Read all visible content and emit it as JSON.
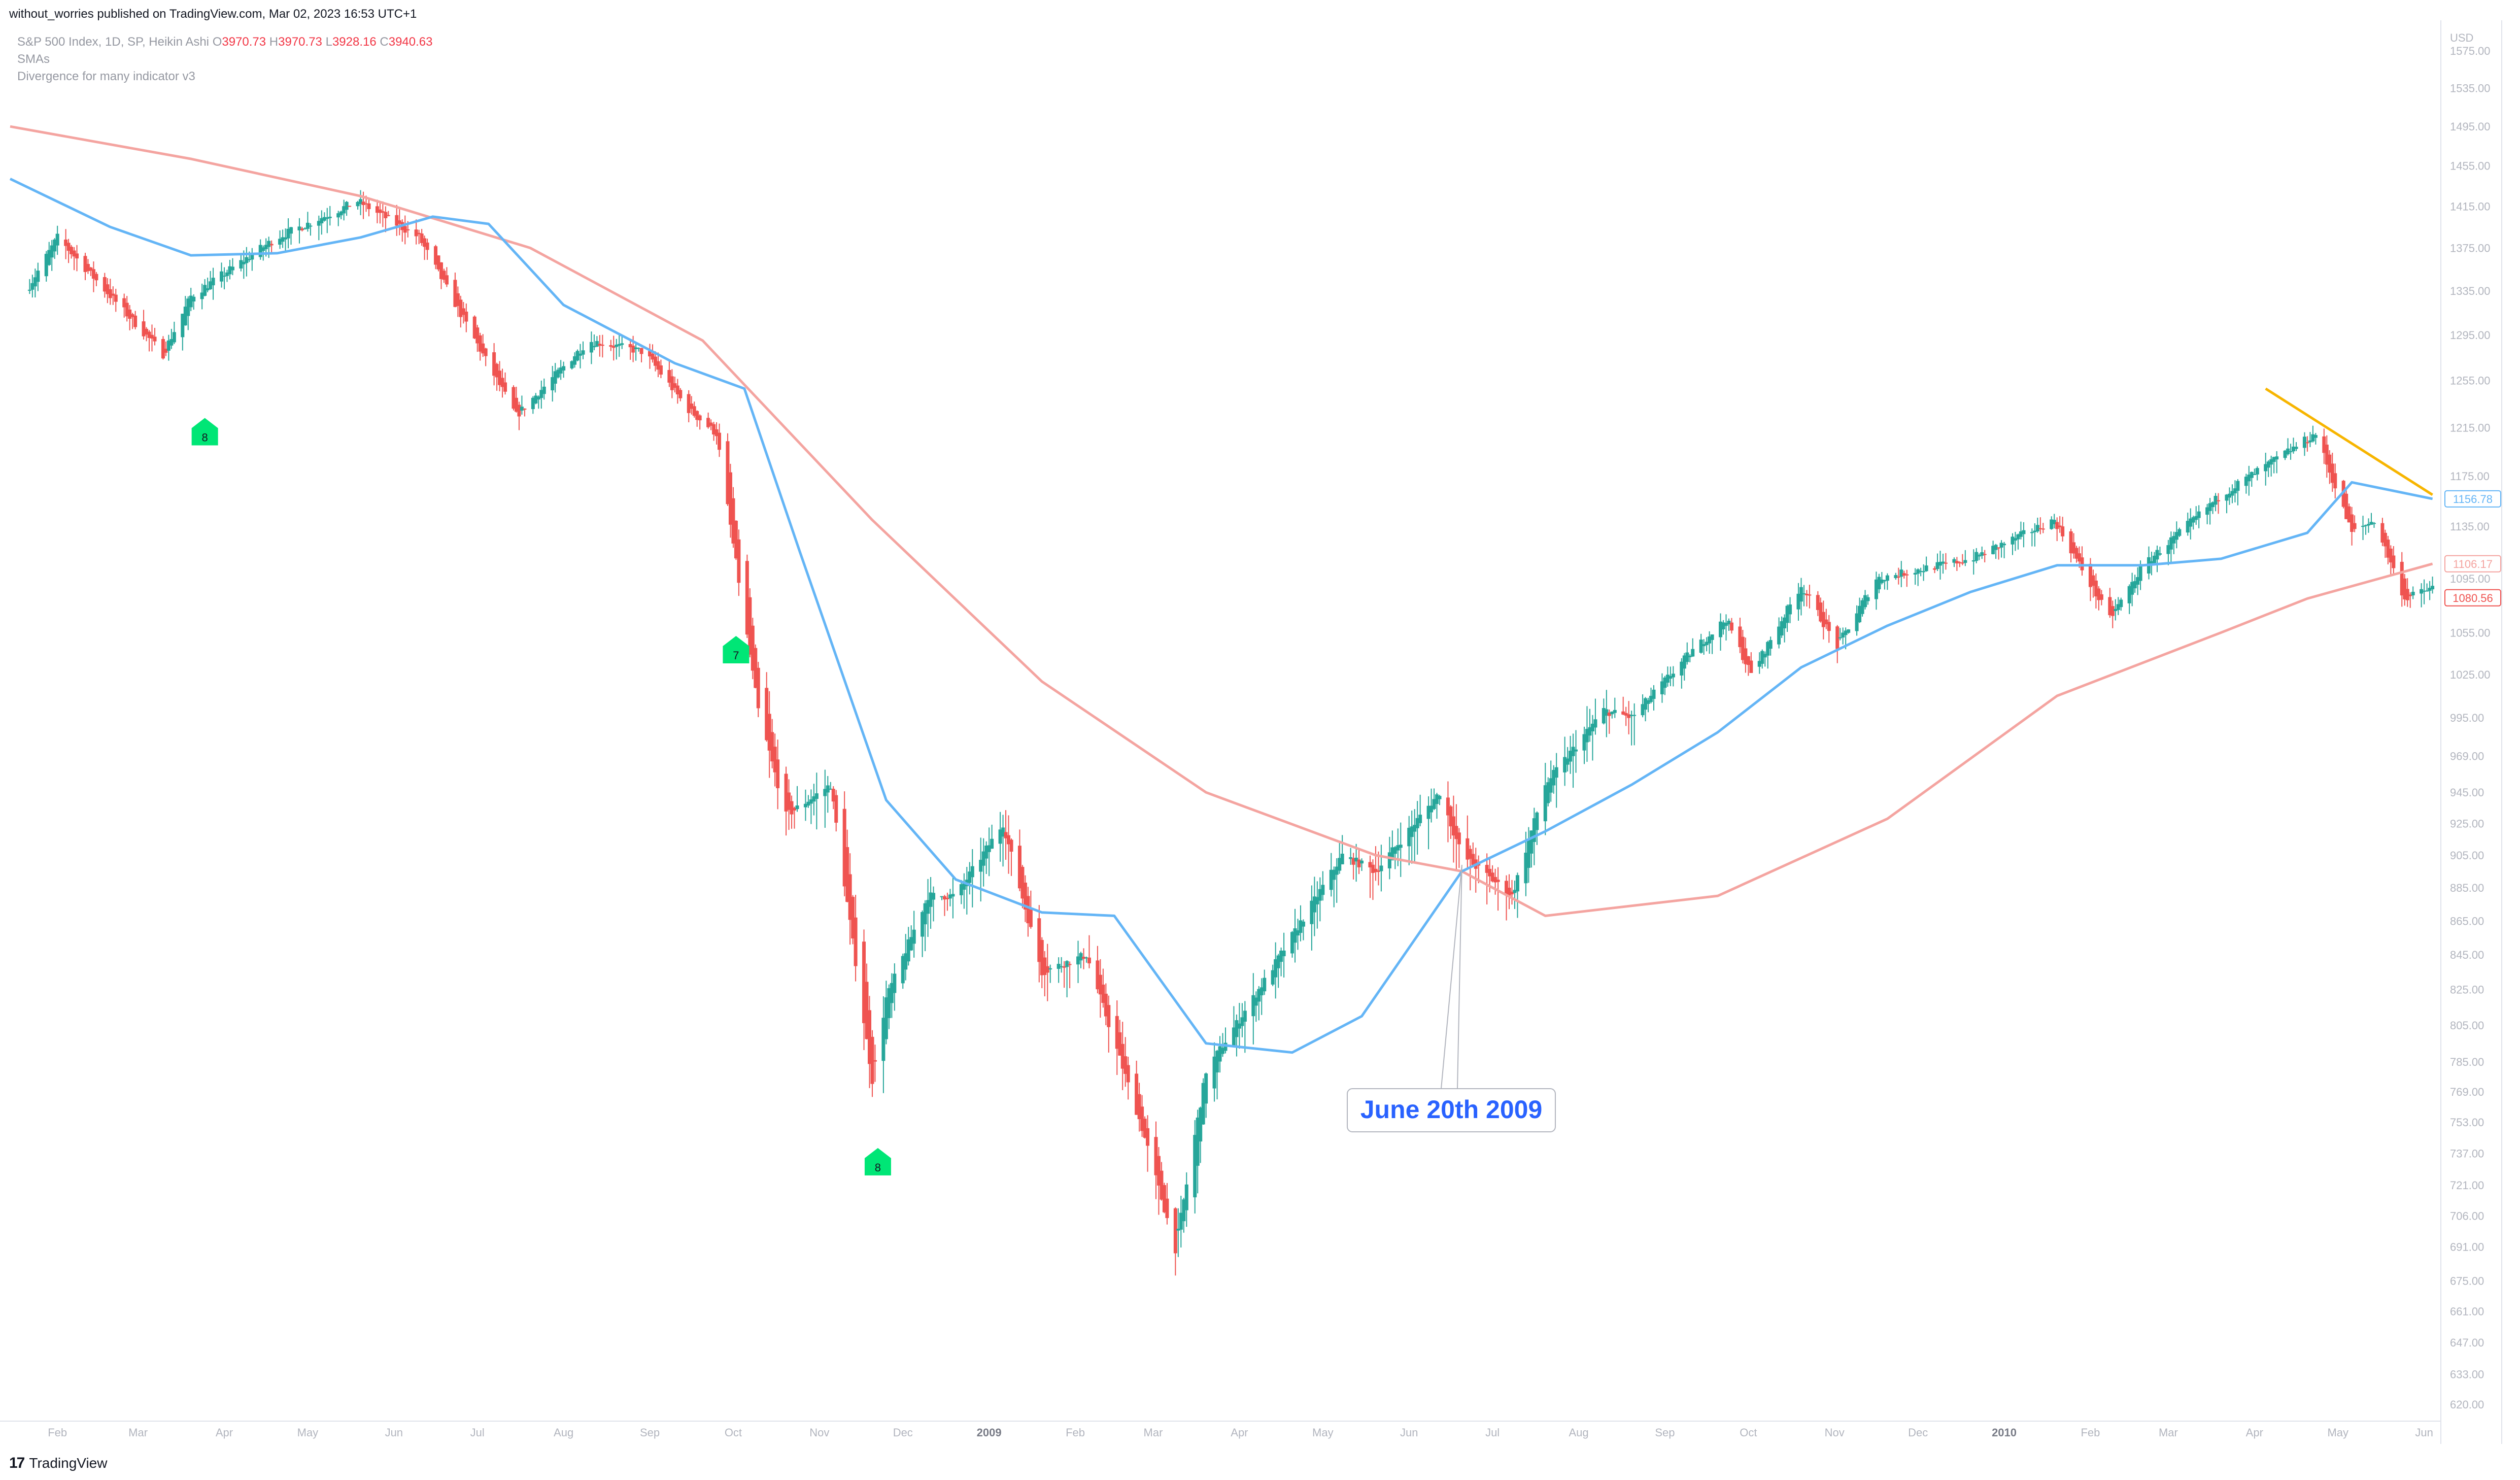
{
  "header": {
    "publisher_line": "without_worries published on TradingView.com, Mar 02, 2023 16:53 UTC+1"
  },
  "legend": {
    "symbol": "S&P 500 Index, 1D, SP, Heikin Ashi",
    "o_label": "O",
    "o_value": "3970.73",
    "h_label": "H",
    "h_value": "3970.73",
    "l_label": "L",
    "l_value": "3928.16",
    "c_label": "C",
    "c_value": "3940.63",
    "indicator1": "SMAs",
    "indicator2": "Divergence for many indicator v3"
  },
  "footer": {
    "brand": "TradingView",
    "logo_glyph": "17"
  },
  "colors": {
    "up": "#26a69a",
    "down": "#ef5350",
    "sma_fast": "#64b5f6",
    "sma_slow": "#f4a4a0",
    "trendline": "#f7b500",
    "signal": "#00e676",
    "annotation_text": "#2962ff"
  },
  "chart_data": {
    "type": "candlestick",
    "price_axis_currency": "USD",
    "y_scale": "log",
    "ylim": [
      615,
      1600
    ],
    "y_ticks": [
      "1575.00",
      "1535.00",
      "1495.00",
      "1455.00",
      "1415.00",
      "1375.00",
      "1335.00",
      "1295.00",
      "1255.00",
      "1215.00",
      "1175.00",
      "1135.00",
      "1095.00",
      "1055.00",
      "1025.00",
      "995.00",
      "969.00",
      "945.00",
      "925.00",
      "905.00",
      "885.00",
      "865.00",
      "845.00",
      "825.00",
      "805.00",
      "785.00",
      "769.00",
      "753.00",
      "737.00",
      "721.00",
      "706.00",
      "691.00",
      "675.00",
      "661.00",
      "647.00",
      "633.00",
      "620.00"
    ],
    "x_ticks": [
      {
        "label": "Feb",
        "date": "2008-02-01"
      },
      {
        "label": "Mar",
        "date": "2008-03-01"
      },
      {
        "label": "Apr",
        "date": "2008-04-01"
      },
      {
        "label": "May",
        "date": "2008-05-01"
      },
      {
        "label": "Jun",
        "date": "2008-06-01"
      },
      {
        "label": "Jul",
        "date": "2008-07-01"
      },
      {
        "label": "Aug",
        "date": "2008-08-01"
      },
      {
        "label": "Sep",
        "date": "2008-09-01"
      },
      {
        "label": "Oct",
        "date": "2008-10-01"
      },
      {
        "label": "Nov",
        "date": "2008-11-01"
      },
      {
        "label": "Dec",
        "date": "2008-12-01"
      },
      {
        "label": "2009",
        "date": "2009-01-01",
        "bold": true
      },
      {
        "label": "Feb",
        "date": "2009-02-01"
      },
      {
        "label": "Mar",
        "date": "2009-03-01"
      },
      {
        "label": "Apr",
        "date": "2009-04-01"
      },
      {
        "label": "May",
        "date": "2009-05-01"
      },
      {
        "label": "Jun",
        "date": "2009-06-01"
      },
      {
        "label": "Jul",
        "date": "2009-07-01"
      },
      {
        "label": "Aug",
        "date": "2009-08-01"
      },
      {
        "label": "Sep",
        "date": "2009-09-01"
      },
      {
        "label": "Oct",
        "date": "2009-10-01"
      },
      {
        "label": "Nov",
        "date": "2009-11-01"
      },
      {
        "label": "Dec",
        "date": "2009-12-01"
      },
      {
        "label": "2010",
        "date": "2010-01-01",
        "bold": true
      },
      {
        "label": "Feb",
        "date": "2010-02-01"
      },
      {
        "label": "Mar",
        "date": "2010-03-01"
      },
      {
        "label": "Apr",
        "date": "2010-04-01"
      },
      {
        "label": "May",
        "date": "2010-05-01"
      },
      {
        "label": "Jun",
        "date": "2010-06-01"
      }
    ],
    "price_anchors": [
      [
        "2008-01-22",
        1340
      ],
      [
        "2008-02-01",
        1385
      ],
      [
        "2008-03-10",
        1278
      ],
      [
        "2008-03-20",
        1330
      ],
      [
        "2008-04-20",
        1385
      ],
      [
        "2008-05-19",
        1420
      ],
      [
        "2008-06-10",
        1385
      ],
      [
        "2008-07-15",
        1225
      ],
      [
        "2008-08-10",
        1290
      ],
      [
        "2008-08-30",
        1280
      ],
      [
        "2008-09-15",
        1230
      ],
      [
        "2008-09-25",
        1210
      ],
      [
        "2008-10-10",
        1000
      ],
      [
        "2008-10-20",
        930
      ],
      [
        "2008-11-05",
        950
      ],
      [
        "2008-11-20",
        775
      ],
      [
        "2008-11-25",
        820
      ],
      [
        "2008-12-10",
        880
      ],
      [
        "2008-12-20",
        880
      ],
      [
        "2009-01-06",
        925
      ],
      [
        "2009-01-20",
        835
      ],
      [
        "2009-02-05",
        845
      ],
      [
        "2009-02-25",
        750
      ],
      [
        "2009-03-09",
        690
      ],
      [
        "2009-03-20",
        780
      ],
      [
        "2009-04-10",
        830
      ],
      [
        "2009-05-08",
        905
      ],
      [
        "2009-05-20",
        895
      ],
      [
        "2009-06-12",
        945
      ],
      [
        "2009-06-20",
        905
      ],
      [
        "2009-07-08",
        880
      ],
      [
        "2009-07-20",
        950
      ],
      [
        "2009-08-10",
        1000
      ],
      [
        "2009-08-20",
        995
      ],
      [
        "2009-09-10",
        1040
      ],
      [
        "2009-09-23",
        1065
      ],
      [
        "2009-10-02",
        1025
      ],
      [
        "2009-10-20",
        1090
      ],
      [
        "2009-11-02",
        1045
      ],
      [
        "2009-11-16",
        1095
      ],
      [
        "2009-12-20",
        1110
      ],
      [
        "2010-01-19",
        1140
      ],
      [
        "2010-02-08",
        1065
      ],
      [
        "2010-02-20",
        1105
      ],
      [
        "2010-03-20",
        1160
      ],
      [
        "2010-04-23",
        1210
      ],
      [
        "2010-05-06",
        1130
      ],
      [
        "2010-05-14",
        1140
      ],
      [
        "2010-05-25",
        1080
      ],
      [
        "2010-06-04",
        1088
      ]
    ],
    "sma_fast": {
      "color": "#64b5f6",
      "last_value": "1156.78",
      "points": [
        [
          "2008-01-15",
          1442
        ],
        [
          "2008-02-20",
          1395
        ],
        [
          "2008-03-20",
          1368
        ],
        [
          "2008-04-20",
          1370
        ],
        [
          "2008-05-20",
          1385
        ],
        [
          "2008-06-15",
          1405
        ],
        [
          "2008-07-05",
          1398
        ],
        [
          "2008-08-01",
          1322
        ],
        [
          "2008-09-10",
          1270
        ],
        [
          "2008-10-05",
          1248
        ],
        [
          "2008-10-25",
          1115
        ],
        [
          "2008-11-25",
          940
        ],
        [
          "2008-12-20",
          890
        ],
        [
          "2009-01-20",
          870
        ],
        [
          "2009-02-15",
          868
        ],
        [
          "2009-03-20",
          795
        ],
        [
          "2009-04-20",
          790
        ],
        [
          "2009-05-15",
          810
        ],
        [
          "2009-06-20",
          895
        ],
        [
          "2009-07-20",
          920
        ],
        [
          "2009-08-20",
          950
        ],
        [
          "2009-09-20",
          985
        ],
        [
          "2009-10-20",
          1030
        ],
        [
          "2009-11-20",
          1060
        ],
        [
          "2009-12-20",
          1085
        ],
        [
          "2010-01-20",
          1105
        ],
        [
          "2010-02-20",
          1105
        ],
        [
          "2010-03-20",
          1110
        ],
        [
          "2010-04-20",
          1130
        ],
        [
          "2010-05-06",
          1170
        ],
        [
          "2010-06-04",
          1156.78
        ]
      ]
    },
    "sma_slow": {
      "color": "#f4a4a0",
      "last_value": "1106.17",
      "points": [
        [
          "2008-01-15",
          1495
        ],
        [
          "2008-03-20",
          1462
        ],
        [
          "2008-05-20",
          1425
        ],
        [
          "2008-07-20",
          1375
        ],
        [
          "2008-09-20",
          1290
        ],
        [
          "2008-11-20",
          1140
        ],
        [
          "2009-01-20",
          1020
        ],
        [
          "2009-03-20",
          945
        ],
        [
          "2009-05-20",
          905
        ],
        [
          "2009-06-20",
          895
        ],
        [
          "2009-07-20",
          868
        ],
        [
          "2009-09-20",
          880
        ],
        [
          "2009-11-20",
          928
        ],
        [
          "2010-01-20",
          1010
        ],
        [
          "2010-03-20",
          1055
        ],
        [
          "2010-04-20",
          1080
        ],
        [
          "2010-06-04",
          1106.17
        ]
      ]
    },
    "price_labels": [
      {
        "value": "1156.78",
        "price": 1156.78,
        "color": "#64b5f6"
      },
      {
        "value": "1106.17",
        "price": 1106.17,
        "color": "#f4a4a0"
      },
      {
        "value": "1080.56",
        "price": 1080.56,
        "color": "#ef5350"
      }
    ],
    "trendline": {
      "color": "#f7b500",
      "points": [
        [
          "2010-04-05",
          1248
        ],
        [
          "2010-06-04",
          1160
        ]
      ]
    },
    "signals": [
      {
        "label": "8",
        "date": "2008-03-25",
        "price": 1212
      },
      {
        "label": "7",
        "date": "2008-10-02",
        "price": 1043
      },
      {
        "label": "8",
        "date": "2008-11-22",
        "price": 733
      }
    ],
    "annotation": {
      "text": "June 20th 2009",
      "date": "2009-06-20",
      "price": 899
    }
  }
}
